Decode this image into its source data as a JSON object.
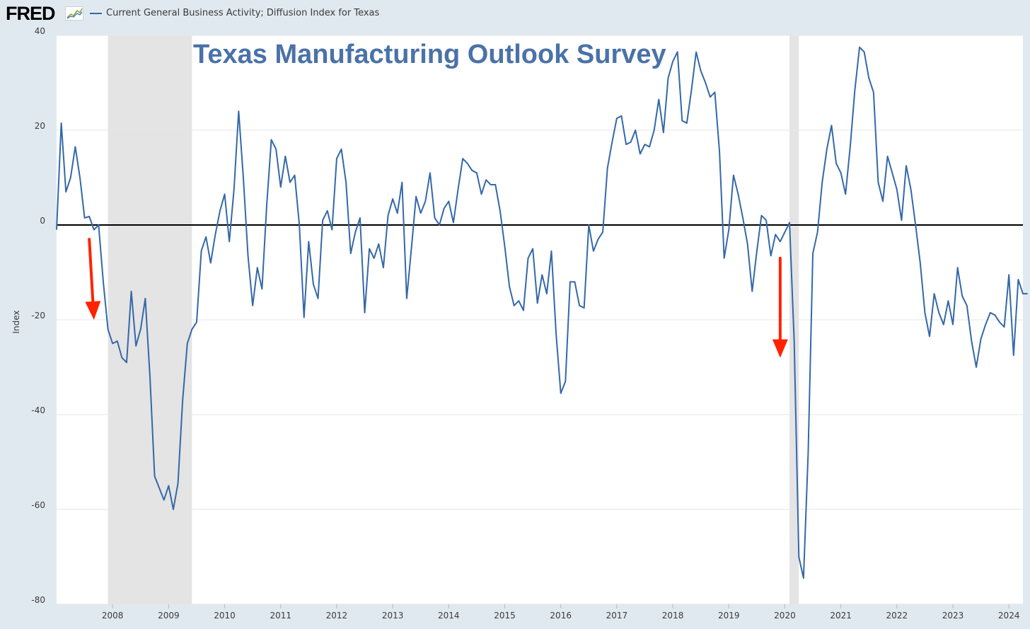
{
  "header": {
    "logo_text": "FRED",
    "legend_label": "Current General Business Activity; Diffusion Index for Texas"
  },
  "colors": {
    "series": "#3468a8",
    "recession": "#e4e4e4",
    "zero_line": "#000000",
    "arrows": "#ff2200",
    "overlay_title": "#4a72a7"
  },
  "icons": {
    "logo_graph": "mini-line-graph-icon",
    "annotation": "red-down-arrow-icon"
  },
  "chart_data": {
    "type": "line",
    "title": "Texas Manufacturing Outlook Survey",
    "xlabel": "",
    "ylabel": "Index",
    "ylim": [
      -80,
      40
    ],
    "yticks": [
      "40",
      "20",
      "0",
      "-20",
      "-40",
      "-60",
      "-80"
    ],
    "yticks_values": [
      40,
      20,
      0,
      -20,
      -40,
      -60,
      -80
    ],
    "xticks": [
      "2008",
      "2009",
      "2010",
      "2011",
      "2012",
      "2013",
      "2014",
      "2015",
      "2016",
      "2017",
      "2018",
      "2019",
      "2020",
      "2021",
      "2022",
      "2023",
      "2024"
    ],
    "xlim": [
      "2007-01",
      "2024-04"
    ],
    "grid": true,
    "legend": "top-left",
    "recessions": [
      {
        "start": "2007-12",
        "end": "2009-06"
      },
      {
        "start": "2020-02",
        "end": "2020-04"
      }
    ],
    "annotations": [
      {
        "type": "arrow",
        "from": {
          "date": "2007-08",
          "value": -3
        },
        "to": {
          "date": "2007-09",
          "value": -20
        }
      },
      {
        "type": "arrow",
        "from": {
          "date": "2019-12",
          "value": -7
        },
        "to": {
          "date": "2019-12",
          "value": -28
        }
      }
    ],
    "series": [
      {
        "name": "Current General Business Activity; Diffusion Index for Texas",
        "start": "2007-01",
        "frequency": "monthly",
        "values": [
          -1,
          21.5,
          7,
          10,
          16.5,
          10,
          1.5,
          1.8,
          -1,
          0,
          -12,
          -22,
          -25,
          -24.5,
          -28,
          -29,
          -14,
          -25.5,
          -22,
          -15.5,
          -32,
          -53,
          -55.5,
          -58,
          -55,
          -60,
          -54.5,
          -37,
          -25,
          -22,
          -20.5,
          -5.5,
          -2.5,
          -8,
          -2,
          3,
          6.5,
          -3.5,
          7.5,
          24,
          10,
          -6.5,
          -17,
          -9,
          -13.5,
          4,
          18,
          16,
          8,
          14.5,
          9,
          10.5,
          0,
          -19.5,
          -3.5,
          -12.5,
          -15.5,
          1,
          3,
          -1,
          14,
          16,
          9,
          -6,
          -1.5,
          1.5,
          -18.5,
          -5,
          -7,
          -4,
          -9,
          2,
          5.5,
          2.5,
          9,
          -15.5,
          -5,
          6,
          2.5,
          5,
          11,
          1.5,
          0,
          3.5,
          5,
          0.5,
          7.5,
          14,
          13,
          11.5,
          11,
          6.5,
          9.5,
          8.5,
          8.5,
          3,
          -4.5,
          -13,
          -17,
          -16,
          -18,
          -7,
          -5,
          -16.5,
          -10.5,
          -14.5,
          -5.5,
          -23,
          -35.5,
          -33,
          -12,
          -12,
          -17,
          -17.5,
          0,
          -5.5,
          -3,
          -1.5,
          12,
          17.5,
          22.5,
          23,
          17,
          17.5,
          20,
          15,
          17,
          16.5,
          20,
          26.5,
          19.5,
          31,
          34.5,
          36.5,
          22,
          21.5,
          28.5,
          36.5,
          32.5,
          30,
          27,
          28,
          15.5,
          -7,
          -1,
          10.5,
          6.5,
          1.5,
          -4,
          -14,
          -5.5,
          2,
          1,
          -6.5,
          -2,
          -3.5,
          -1.5,
          0.5,
          -24.5,
          -70,
          -74.5,
          -48,
          -6,
          -1.5,
          9,
          16,
          21,
          13,
          11,
          6.5,
          16.5,
          28.5,
          37.5,
          36.5,
          31,
          28,
          9,
          5,
          14.5,
          11,
          7.5,
          1,
          12.5,
          7.5,
          0,
          -8,
          -18.5,
          -23.5,
          -14.5,
          -18.5,
          -21,
          -16,
          -21,
          -9,
          -15,
          -17,
          -24.5,
          -30,
          -24,
          -21,
          -18.5,
          -19,
          -20.5,
          -21.5,
          -10.5,
          -27.5,
          -11.5,
          -14.5,
          -14.5
        ]
      }
    ]
  }
}
